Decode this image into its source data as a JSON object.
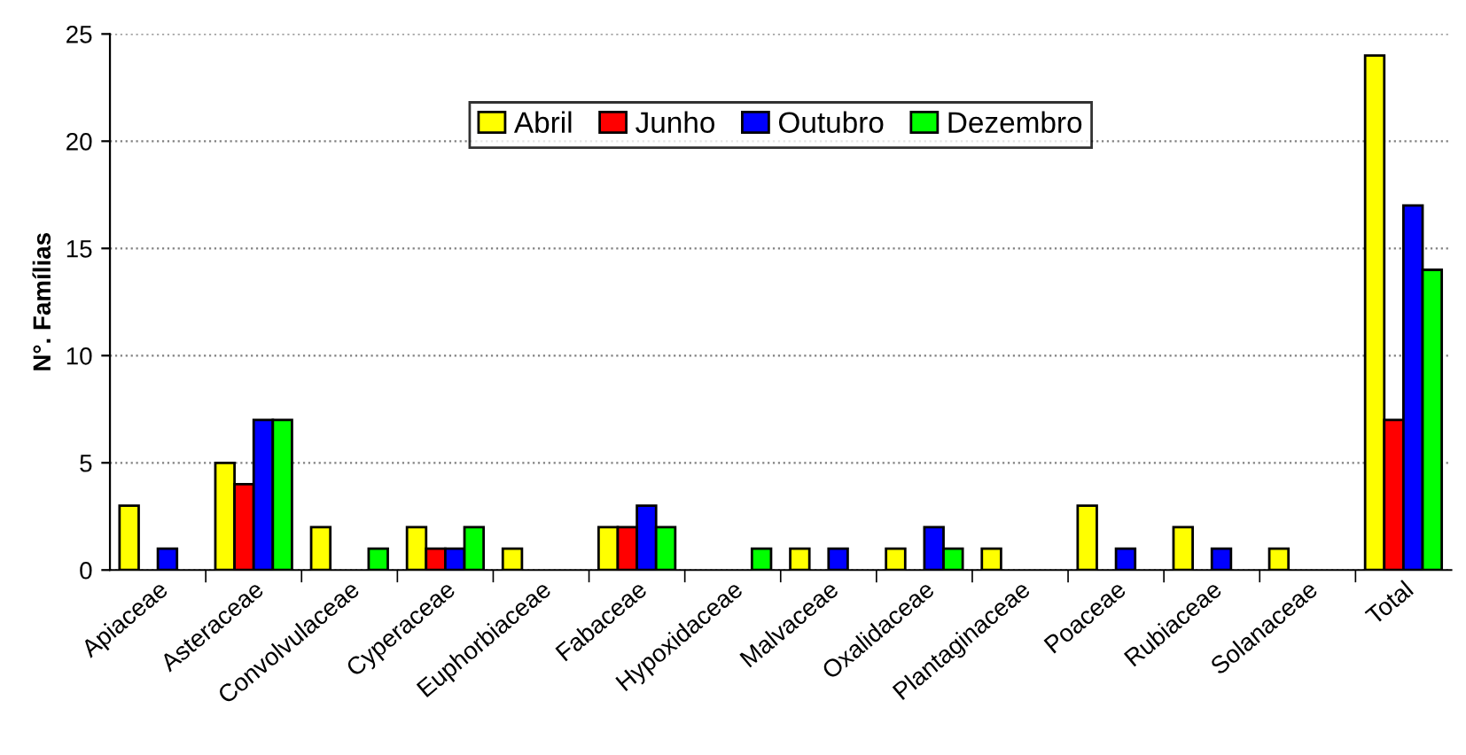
{
  "chart_data": {
    "type": "bar",
    "ylabel": "N°. Famílias",
    "categories": [
      "Apiaceae",
      "Asteraceae",
      "Convolvulaceae",
      "Cyperaceae",
      "Euphorbiaceae",
      "Fabaceae",
      "Hypoxidaceae",
      "Malvaceae",
      "Oxalidaceae",
      "Plantaginaceae",
      "Poaceae",
      "Rubiaceae",
      "Solanaceae",
      "Total"
    ],
    "series": [
      {
        "name": "Abril",
        "color": "#ffff00",
        "values": [
          3,
          5,
          2,
          2,
          1,
          2,
          null,
          1,
          1,
          1,
          3,
          2,
          1,
          24
        ]
      },
      {
        "name": "Junho",
        "color": "#ff0000",
        "values": [
          null,
          4,
          null,
          1,
          null,
          2,
          null,
          null,
          null,
          null,
          null,
          null,
          null,
          7
        ]
      },
      {
        "name": "Outubro",
        "color": "#0000ff",
        "values": [
          1,
          7,
          null,
          1,
          null,
          3,
          null,
          1,
          2,
          null,
          1,
          1,
          null,
          17
        ]
      },
      {
        "name": "Dezembro",
        "color": "#00ff00",
        "values": [
          null,
          7,
          1,
          2,
          null,
          2,
          1,
          null,
          1,
          null,
          null,
          null,
          null,
          14
        ]
      }
    ],
    "ylim": [
      0,
      25
    ],
    "yticks": [
      0,
      5,
      10,
      15,
      20,
      25
    ],
    "grid": "y",
    "legend": "top"
  }
}
